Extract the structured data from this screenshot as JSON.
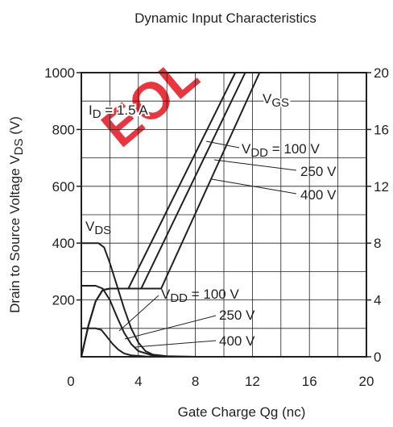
{
  "chart_data": {
    "type": "line",
    "title": "Dynamic Input Characteristics",
    "watermark": "EOL",
    "xlabel": [
      "Gate Charge  Qg  (nc)"
    ],
    "ylabel": [
      "Drain to Source Voltage  V",
      "DS",
      "  (V)"
    ],
    "xlim": [
      0,
      20
    ],
    "xticks": [
      0,
      4,
      8,
      12,
      16,
      20
    ],
    "xminor": [
      2,
      6,
      10,
      14,
      18
    ],
    "ylim": [
      0,
      1000
    ],
    "yticks": [
      200,
      400,
      600,
      800,
      1000
    ],
    "yminor": [
      100,
      300,
      500,
      700,
      900
    ],
    "y2lim": [
      0,
      20
    ],
    "y2ticks": [
      0,
      4,
      8,
      12,
      16,
      20
    ],
    "grid": true,
    "series": [
      {
        "color": "#231f20",
        "axis": "y2",
        "x": [
          0,
          0.5,
          1,
          1.5,
          2,
          3.3,
          10.8
        ],
        "values": [
          0,
          2.2,
          3.9,
          4.7,
          4.8,
          4.8,
          20
        ]
      },
      {
        "color": "#231f20",
        "axis": "y2",
        "x": [
          0,
          0.5,
          1,
          1.5,
          2,
          4.2,
          11.5
        ],
        "values": [
          0,
          2.2,
          3.9,
          4.7,
          4.8,
          4.8,
          20
        ]
      },
      {
        "color": "#231f20",
        "axis": "y2",
        "x": [
          0,
          0.5,
          1,
          1.5,
          2,
          5.6,
          12.5
        ],
        "values": [
          0,
          2.2,
          3.9,
          4.7,
          4.8,
          4.8,
          20
        ]
      },
      {
        "color": "#231f20",
        "x": [
          0,
          1,
          1.4,
          1.8,
          2.2,
          2.6,
          3,
          3.5,
          4.5,
          6,
          20
        ],
        "values": [
          100,
          100,
          95,
          70,
          45,
          25,
          12,
          5,
          1,
          0,
          0
        ]
      },
      {
        "color": "#231f20",
        "x": [
          0,
          1,
          1.5,
          2,
          2.5,
          3,
          3.5,
          4,
          5,
          6,
          8,
          20
        ],
        "values": [
          250,
          250,
          240,
          200,
          140,
          85,
          45,
          20,
          5,
          1,
          0,
          0
        ]
      },
      {
        "color": "#231f20",
        "x": [
          0,
          1.2,
          1.6,
          2,
          2.5,
          3,
          3.5,
          4,
          4.5,
          5,
          6,
          8,
          20
        ],
        "values": [
          400,
          400,
          385,
          330,
          250,
          170,
          100,
          50,
          20,
          8,
          2,
          0,
          0
        ]
      }
    ],
    "annotations": [
      [
        "I",
        "D",
        " = 1.5 A"
      ],
      [
        "V",
        "GS"
      ],
      [
        "V",
        "DD",
        " = 100 V"
      ],
      [
        "250 V"
      ],
      [
        "400 V"
      ],
      [
        "V",
        "DS"
      ],
      [
        "V",
        "DD",
        " = 100 V"
      ],
      [
        "250 V"
      ],
      [
        "400 V"
      ]
    ]
  }
}
